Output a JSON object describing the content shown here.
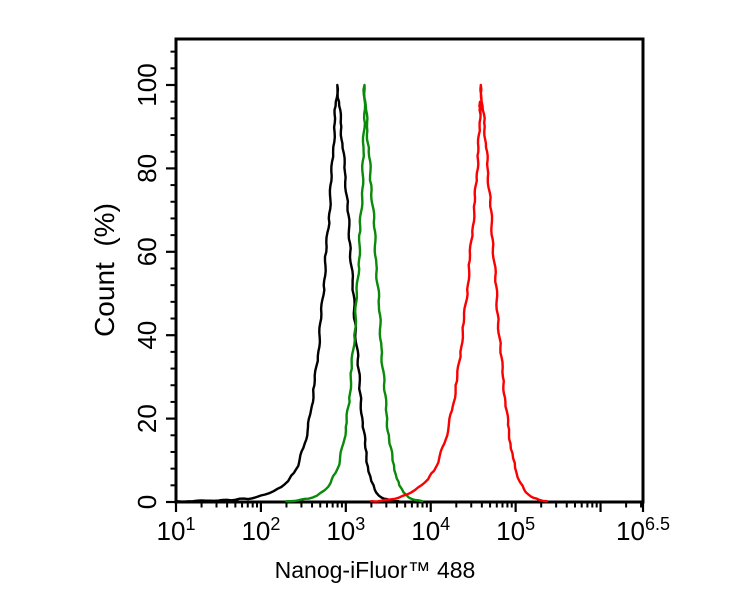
{
  "page": {
    "background": "#ffffff"
  },
  "chart_data": {
    "type": "line",
    "subtype": "flow-cytometry-histogram-overlay",
    "title": "",
    "xlabel": "Nanog-iFluor™ 488",
    "ylabel": "Count  (%)",
    "x_scale": "log10",
    "xlim_log10": [
      1,
      6.5
    ],
    "ylim": [
      0,
      111
    ],
    "grid": false,
    "legend": "none",
    "axis_color": "#000000",
    "x_major_ticks": [
      {
        "log10": 1,
        "base": "10",
        "exponent": "1"
      },
      {
        "log10": 2,
        "base": "10",
        "exponent": "2"
      },
      {
        "log10": 3,
        "base": "10",
        "exponent": "3"
      },
      {
        "log10": 4,
        "base": "10",
        "exponent": "4"
      },
      {
        "log10": 5,
        "base": "10",
        "exponent": "5"
      },
      {
        "log10": 6,
        "base": "",
        "exponent": ""
      },
      {
        "log10": 6.5,
        "base": "10",
        "exponent": "6.5"
      }
    ],
    "x_minor_ticks": "log10 subdivisions 2-9 within each decade",
    "y_major_ticks": [
      0,
      20,
      40,
      60,
      80,
      100
    ],
    "y_minor_tick_step": 4,
    "series": [
      {
        "name": "black-curve",
        "color": "#000000",
        "peak_log10": 2.9,
        "peak_percent": 100,
        "points": [
          [
            1.0,
            0.2
          ],
          [
            1.2,
            0.2
          ],
          [
            1.4,
            0.3
          ],
          [
            1.55,
            0.5
          ],
          [
            1.65,
            0.4
          ],
          [
            1.75,
            0.8
          ],
          [
            1.85,
            0.7
          ],
          [
            1.95,
            1.2
          ],
          [
            2.05,
            1.8
          ],
          [
            2.15,
            2.6
          ],
          [
            2.24,
            3.6
          ],
          [
            2.32,
            5
          ],
          [
            2.39,
            7
          ],
          [
            2.45,
            9.5
          ],
          [
            2.5,
            13
          ],
          [
            2.55,
            17
          ],
          [
            2.59,
            22
          ],
          [
            2.63,
            28
          ],
          [
            2.67,
            35
          ],
          [
            2.71,
            44
          ],
          [
            2.74,
            52
          ],
          [
            2.77,
            60
          ],
          [
            2.8,
            68
          ],
          [
            2.83,
            77
          ],
          [
            2.85,
            84
          ],
          [
            2.87,
            91
          ],
          [
            2.88,
            95
          ],
          [
            2.9,
            100
          ],
          [
            2.92,
            96
          ],
          [
            2.94,
            91
          ],
          [
            2.96,
            86
          ],
          [
            2.99,
            79
          ],
          [
            3.02,
            71
          ],
          [
            3.05,
            62
          ],
          [
            3.08,
            52
          ],
          [
            3.11,
            43
          ],
          [
            3.14,
            34
          ],
          [
            3.17,
            26
          ],
          [
            3.2,
            19
          ],
          [
            3.23,
            13
          ],
          [
            3.26,
            8.5
          ],
          [
            3.3,
            5
          ],
          [
            3.34,
            3
          ],
          [
            3.39,
            1.5
          ],
          [
            3.45,
            0.8
          ],
          [
            3.52,
            0.4
          ],
          [
            3.62,
            0.2
          ]
        ]
      },
      {
        "name": "green-curve",
        "color": "#0a8a0a",
        "peak_log10": 3.22,
        "peak_percent": 100,
        "points": [
          [
            2.3,
            0.2
          ],
          [
            2.44,
            0.4
          ],
          [
            2.56,
            0.8
          ],
          [
            2.66,
            1.5
          ],
          [
            2.75,
            2.8
          ],
          [
            2.82,
            4.5
          ],
          [
            2.88,
            7
          ],
          [
            2.93,
            10
          ],
          [
            2.97,
            14
          ],
          [
            3.01,
            19
          ],
          [
            3.04,
            25
          ],
          [
            3.07,
            32
          ],
          [
            3.1,
            40
          ],
          [
            3.13,
            49
          ],
          [
            3.15,
            57
          ],
          [
            3.17,
            65
          ],
          [
            3.19,
            74
          ],
          [
            3.21,
            84
          ],
          [
            3.215,
            92
          ],
          [
            3.22,
            100
          ],
          [
            3.235,
            95
          ],
          [
            3.25,
            90
          ],
          [
            3.27,
            84
          ],
          [
            3.3,
            76
          ],
          [
            3.33,
            67
          ],
          [
            3.36,
            57
          ],
          [
            3.39,
            47
          ],
          [
            3.42,
            37
          ],
          [
            3.45,
            28
          ],
          [
            3.48,
            21
          ],
          [
            3.51,
            15
          ],
          [
            3.55,
            10
          ],
          [
            3.59,
            6.5
          ],
          [
            3.63,
            4
          ],
          [
            3.68,
            2.3
          ],
          [
            3.74,
            1.1
          ],
          [
            3.81,
            0.5
          ],
          [
            3.9,
            0.2
          ]
        ]
      },
      {
        "name": "red-curve",
        "color": "#fb0000",
        "peak_log10": 4.59,
        "peak_percent": 100,
        "points": [
          [
            3.3,
            0.2
          ],
          [
            3.42,
            0.3
          ],
          [
            3.52,
            0.6
          ],
          [
            3.62,
            1
          ],
          [
            3.72,
            1.8
          ],
          [
            3.81,
            2.8
          ],
          [
            3.89,
            4
          ],
          [
            3.97,
            5.5
          ],
          [
            4.04,
            7.5
          ],
          [
            4.1,
            10.5
          ],
          [
            4.16,
            14
          ],
          [
            4.21,
            18
          ],
          [
            4.26,
            23
          ],
          [
            4.31,
            29
          ],
          [
            4.35,
            36
          ],
          [
            4.39,
            43
          ],
          [
            4.43,
            51
          ],
          [
            4.46,
            58
          ],
          [
            4.49,
            65
          ],
          [
            4.52,
            72
          ],
          [
            4.54,
            78
          ],
          [
            4.56,
            84
          ],
          [
            4.575,
            90
          ],
          [
            4.58,
            96
          ],
          [
            4.585,
            93
          ],
          [
            4.59,
            100
          ],
          [
            4.61,
            95
          ],
          [
            4.63,
            91
          ],
          [
            4.65,
            86
          ],
          [
            4.67,
            80
          ],
          [
            4.7,
            72
          ],
          [
            4.73,
            63
          ],
          [
            4.76,
            54
          ],
          [
            4.79,
            45
          ],
          [
            4.82,
            37
          ],
          [
            4.85,
            30
          ],
          [
            4.88,
            24
          ],
          [
            4.91,
            18.5
          ],
          [
            4.94,
            14
          ],
          [
            4.97,
            10.5
          ],
          [
            5.01,
            7
          ],
          [
            5.05,
            4.8
          ],
          [
            5.1,
            3
          ],
          [
            5.15,
            1.8
          ],
          [
            5.21,
            1
          ],
          [
            5.28,
            0.5
          ],
          [
            5.37,
            0.2
          ]
        ]
      }
    ]
  }
}
